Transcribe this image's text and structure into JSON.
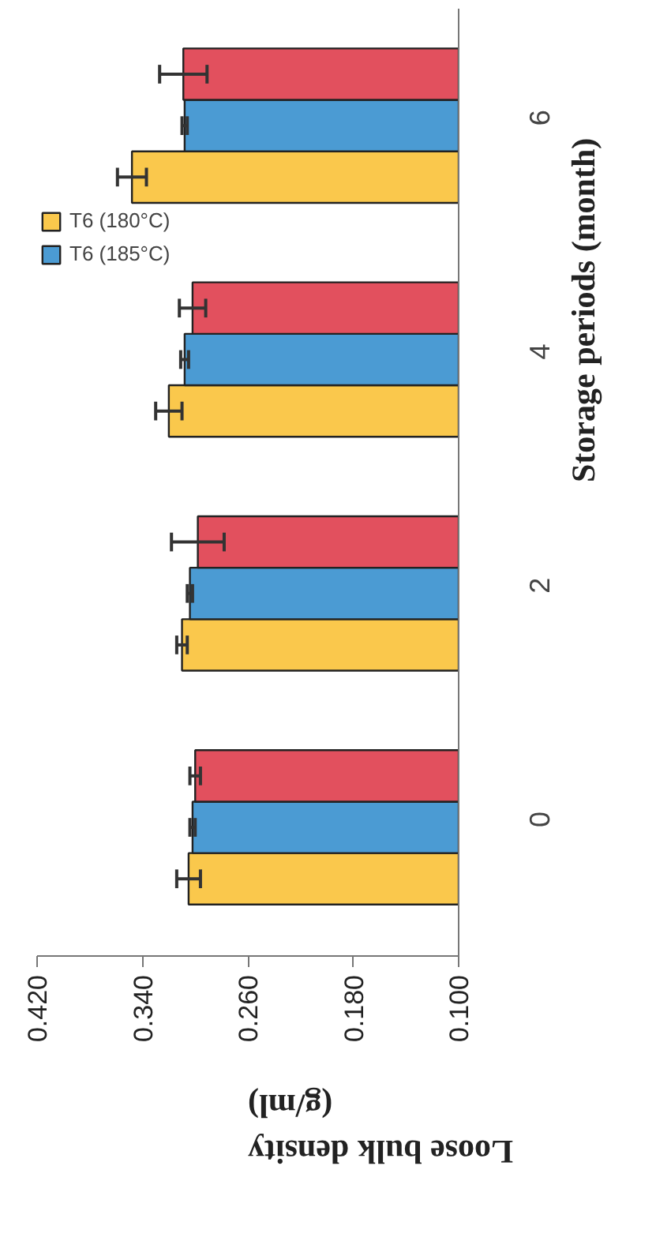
{
  "chart_data": {
    "type": "bar",
    "orientation": "horizontal",
    "categories": [
      "6",
      "4",
      "2",
      "0"
    ],
    "xlabel": "Loose bulk density (g/ml)",
    "ylabel": "Storage periods (month)",
    "xlim": [
      0.42,
      0.1
    ],
    "xticks": [
      {
        "value": 0.42,
        "label": "0.420"
      },
      {
        "value": 0.34,
        "label": "0.340"
      },
      {
        "value": 0.26,
        "label": "0.260"
      },
      {
        "value": 0.18,
        "label": "0.180"
      },
      {
        "value": 0.1,
        "label": "0.100"
      }
    ],
    "series": [
      {
        "name": "T6 (180°C)",
        "color": "#fac84c",
        "values": [
          0.348,
          0.32,
          0.31,
          0.305
        ],
        "errors": [
          0.011,
          0.01,
          0.004,
          0.009
        ]
      },
      {
        "name": "T6 (185°C)",
        "color": "#4b9bd3",
        "values": [
          0.308,
          0.308,
          0.304,
          0.302
        ],
        "errors": [
          0.002,
          0.003,
          0.002,
          0.002
        ]
      },
      {
        "color": "#e2505e",
        "values": [
          0.309,
          0.302,
          0.298,
          0.3
        ],
        "errors": [
          0.018,
          0.01,
          0.02,
          0.004
        ]
      }
    ],
    "grid": false,
    "legend": "left"
  }
}
